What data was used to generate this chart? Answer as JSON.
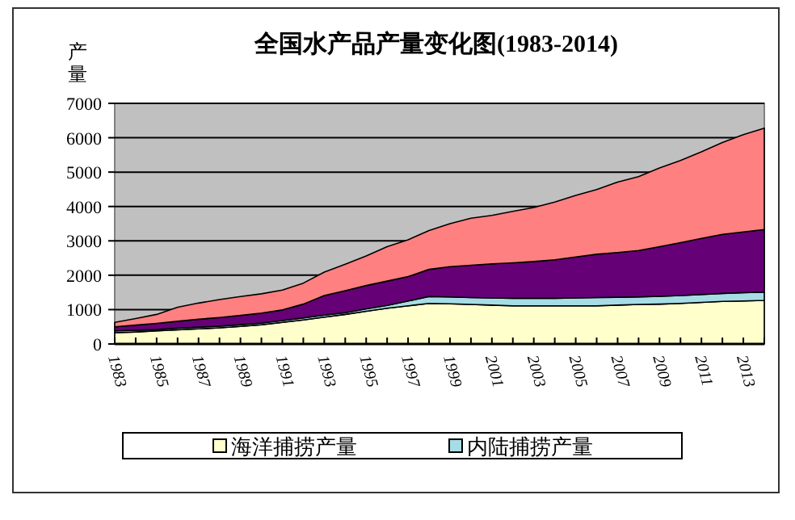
{
  "chart_data": {
    "type": "area",
    "title": "全国水产品产量变化图(1983-2014)",
    "ylabel": "产量",
    "stacked": true,
    "grid": "y",
    "legend": "bottom",
    "categories": [
      "1983",
      null,
      "1985",
      null,
      "1987",
      null,
      "1989",
      null,
      "1991",
      null,
      "1993",
      null,
      "1995",
      null,
      "1997",
      null,
      "1999",
      null,
      "2001",
      null,
      "2003",
      null,
      "2005",
      null,
      "2007",
      null,
      "2009",
      null,
      "2011",
      null,
      "2013",
      null
    ],
    "ylim": [
      0,
      7000
    ],
    "yticks": [
      0,
      1000,
      2000,
      3000,
      4000,
      5000,
      6000,
      7000
    ],
    "series": [
      {
        "name": "海洋捕捞产量",
        "color": "#ffffcc",
        "values": [
          330,
          350,
          380,
          410,
          440,
          470,
          510,
          560,
          630,
          700,
          780,
          860,
          950,
          1040,
          1110,
          1180,
          1170,
          1150,
          1130,
          1110,
          1110,
          1110,
          1110,
          1110,
          1130,
          1150,
          1160,
          1180,
          1210,
          1240,
          1250,
          1270
        ]
      },
      {
        "name": "内陆捕捞产量",
        "color": "#a6dce6",
        "values": [
          50,
          50,
          40,
          50,
          50,
          50,
          50,
          50,
          50,
          60,
          60,
          50,
          70,
          80,
          140,
          200,
          200,
          200,
          210,
          220,
          220,
          220,
          230,
          240,
          230,
          220,
          230,
          230,
          230,
          230,
          240,
          240
        ]
      },
      {
        "color": "#660077",
        "values": [
          120,
          150,
          180,
          200,
          230,
          250,
          270,
          290,
          310,
          400,
          570,
          640,
          680,
          710,
          710,
          790,
          880,
          940,
          990,
          1030,
          1070,
          1120,
          1190,
          1260,
          1300,
          1350,
          1440,
          1540,
          1630,
          1720,
          1770,
          1820
        ]
      },
      {
        "color": "#ff8080",
        "values": [
          130,
          190,
          260,
          410,
          470,
          520,
          550,
          560,
          580,
          610,
          680,
          770,
          860,
          1000,
          1070,
          1130,
          1250,
          1370,
          1410,
          1500,
          1570,
          1680,
          1790,
          1880,
          2050,
          2150,
          2290,
          2390,
          2520,
          2670,
          2830,
          2950
        ]
      }
    ]
  }
}
